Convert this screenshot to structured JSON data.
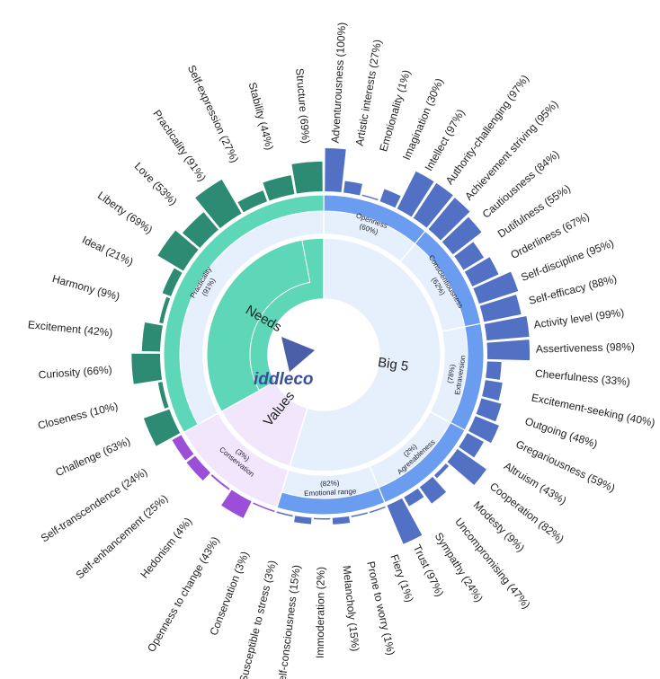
{
  "chart_data": {
    "type": "sunburst",
    "colors": {
      "needs": "#2e8b73",
      "needs_light": "#5ed6b8",
      "values": "#9b4fd8",
      "values_light": "#f1e6fc",
      "big5": "#5271c5",
      "big5_light": "#e6f0fc",
      "big5_mid": "#6a9cf0"
    },
    "logo_text": "iddleco",
    "groups": [
      {
        "name": "Big 5",
        "key": "big5",
        "percent_label": "",
        "dimensions": [
          {
            "name": "Openness",
            "percent_label": "(60%)",
            "facets": [
              {
                "name": "Adventurousness",
                "label": "(100%)",
                "value": 100
              },
              {
                "name": "Artistic interests",
                "label": "(27%)",
                "value": 27
              },
              {
                "name": "Emotionality",
                "label": "(1%)",
                "value": 1
              },
              {
                "name": "Imagination",
                "label": "(30%)",
                "value": 30
              },
              {
                "name": "Intellect",
                "label": "(97%)",
                "value": 97
              },
              {
                "name": "Authority-challenging",
                "label": "(97%)",
                "value": 97
              }
            ]
          },
          {
            "name": "Conscientiousness",
            "percent_label": "(62%)",
            "facets": [
              {
                "name": "Achievement striving",
                "label": "(95%)",
                "value": 95
              },
              {
                "name": "Cautiousness",
                "label": "(84%)",
                "value": 84
              },
              {
                "name": "Dutifulness",
                "label": "(55%)",
                "value": 55
              },
              {
                "name": "Orderliness",
                "label": "(67%)",
                "value": 67
              },
              {
                "name": "Self-discipline",
                "label": "(95%)",
                "value": 95
              },
              {
                "name": "Self-efficacy",
                "label": "(88%)",
                "value": 88
              }
            ]
          },
          {
            "name": "Extraversion",
            "percent_label": "(78%)",
            "facets": [
              {
                "name": "Activity level",
                "label": "(99%)",
                "value": 99
              },
              {
                "name": "Assertiveness",
                "label": "(98%)",
                "value": 98
              },
              {
                "name": "Cheerfulness",
                "label": "(33%)",
                "value": 33
              },
              {
                "name": "Excitement-seeking",
                "label": "(40%)",
                "value": 40
              },
              {
                "name": "Outgoing",
                "label": "(48%)",
                "value": 48
              },
              {
                "name": "Gregariousness",
                "label": "(59%)",
                "value": 59
              }
            ]
          },
          {
            "name": "Agreeableness",
            "percent_label": "(2%)",
            "facets": [
              {
                "name": "Altruism",
                "label": "(43%)",
                "value": 43
              },
              {
                "name": "Cooperation",
                "label": "(82%)",
                "value": 82
              },
              {
                "name": "Modesty",
                "label": "(9%)",
                "value": 9
              },
              {
                "name": "Uncompromising",
                "label": "(47%)",
                "value": 47
              },
              {
                "name": "Sympathy",
                "label": "(24%)",
                "value": 24
              },
              {
                "name": "Trust",
                "label": "(97%)",
                "value": 97
              }
            ]
          },
          {
            "name": "Emotional range",
            "percent_label": "(82%)",
            "facets": [
              {
                "name": "Fiery",
                "label": "(1%)",
                "value": 1
              },
              {
                "name": "Prone to worry",
                "label": "(1%)",
                "value": 1
              },
              {
                "name": "Melancholy",
                "label": "(15%)",
                "value": 15
              },
              {
                "name": "Immoderation",
                "label": "(2%)",
                "value": 2
              },
              {
                "name": "Self-consciousness",
                "label": "(15%)",
                "value": 15
              },
              {
                "name": "Susceptible to stress",
                "label": "(3%)",
                "value": 3
              }
            ]
          }
        ]
      },
      {
        "name": "Values",
        "key": "values",
        "dimensions": [
          {
            "name": "Conservation",
            "percent_label": "(3%)",
            "facets": [
              {
                "name": "Conservation",
                "label": "(3%)",
                "value": 3
              },
              {
                "name": "Openness to change",
                "label": "(43%)",
                "value": 43
              },
              {
                "name": "Hedonism",
                "label": "(4%)",
                "value": 4
              },
              {
                "name": "Self-enhancement",
                "label": "(25%)",
                "value": 25
              },
              {
                "name": "Self-transcendence",
                "label": "(24%)",
                "value": 24
              }
            ]
          }
        ]
      },
      {
        "name": "Needs",
        "key": "needs",
        "dimensions": [
          {
            "name": "Practicality",
            "percent_label": "(91%)",
            "facets": [
              {
                "name": "Challenge",
                "label": "(63%)",
                "value": 63
              },
              {
                "name": "Closeness",
                "label": "(10%)",
                "value": 10
              },
              {
                "name": "Curiosity",
                "label": "(66%)",
                "value": 66
              },
              {
                "name": "Excitement",
                "label": "(42%)",
                "value": 42
              },
              {
                "name": "Harmony",
                "label": "(9%)",
                "value": 9
              },
              {
                "name": "Ideal",
                "label": "(21%)",
                "value": 21
              },
              {
                "name": "Liberty",
                "label": "(69%)",
                "value": 69
              },
              {
                "name": "Love",
                "label": "(53%)",
                "value": 53
              },
              {
                "name": "Practicality",
                "label": "(91%)",
                "value": 91
              },
              {
                "name": "Self-expression",
                "label": "(27%)",
                "value": 27
              },
              {
                "name": "Stability",
                "label": "(44%)",
                "value": 44
              },
              {
                "name": "Structure",
                "label": "(69%)",
                "value": 69
              }
            ]
          }
        ]
      }
    ]
  }
}
